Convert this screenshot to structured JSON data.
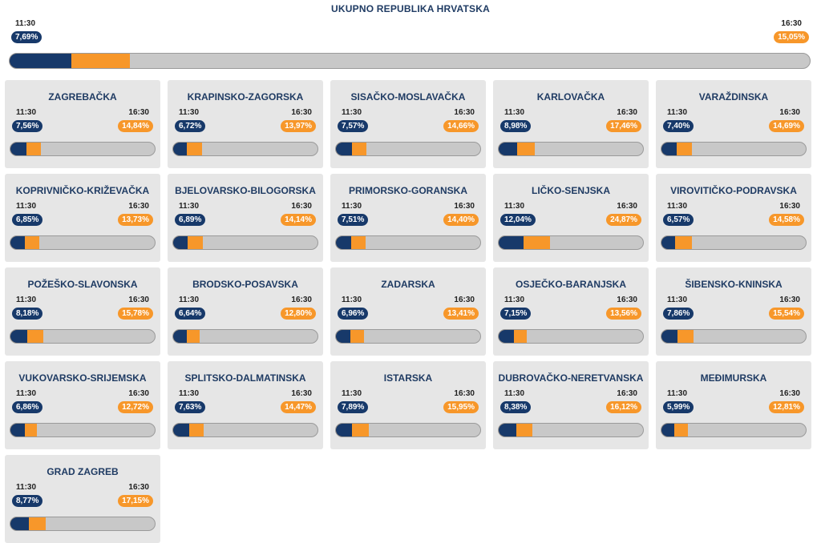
{
  "national": {
    "title": "UKUPNO REPUBLIKA HRVATSKA",
    "time1": "11:30",
    "value1": "7,69%",
    "frac1": 0.0769,
    "time2": "16:30",
    "value2": "15,05%",
    "frac2": 0.1505
  },
  "colors": {
    "first": "#17396a",
    "second": "#f7972a",
    "track": "#c8c8c8"
  },
  "counties": [
    {
      "name": "ZAGREBAČKA",
      "time1": "11:30",
      "value1": "7,56%",
      "frac1": 0.0756,
      "time2": "16:30",
      "value2": "14,84%",
      "frac2": 0.1484
    },
    {
      "name": "KRAPINSKO-ZAGORSKA",
      "time1": "11:30",
      "value1": "6,72%",
      "frac1": 0.0672,
      "time2": "16:30",
      "value2": "13,97%",
      "frac2": 0.1397
    },
    {
      "name": "SISAČKO-MOSLAVAČKA",
      "time1": "11:30",
      "value1": "7,57%",
      "frac1": 0.0757,
      "time2": "16:30",
      "value2": "14,66%",
      "frac2": 0.1466
    },
    {
      "name": "KARLOVAČKA",
      "time1": "11:30",
      "value1": "8,98%",
      "frac1": 0.0898,
      "time2": "16:30",
      "value2": "17,46%",
      "frac2": 0.1746
    },
    {
      "name": "VARAŽDINSKA",
      "time1": "11:30",
      "value1": "7,40%",
      "frac1": 0.074,
      "time2": "16:30",
      "value2": "14,69%",
      "frac2": 0.1469
    },
    {
      "name": "KOPRIVNIČKO-KRIŽEVAČKA",
      "time1": "11:30",
      "value1": "6,85%",
      "frac1": 0.0685,
      "time2": "16:30",
      "value2": "13,73%",
      "frac2": 0.1373
    },
    {
      "name": "BJELOVARSKO-BILOGORSKA",
      "time1": "11:30",
      "value1": "6,89%",
      "frac1": 0.0689,
      "time2": "16:30",
      "value2": "14,14%",
      "frac2": 0.1414
    },
    {
      "name": "PRIMORSKO-GORANSKA",
      "time1": "11:30",
      "value1": "7,51%",
      "frac1": 0.0751,
      "time2": "16:30",
      "value2": "14,40%",
      "frac2": 0.144
    },
    {
      "name": "LIČKO-SENJSKA",
      "time1": "11:30",
      "value1": "12,04%",
      "frac1": 0.1204,
      "time2": "16:30",
      "value2": "24,87%",
      "frac2": 0.2487
    },
    {
      "name": "VIROVITIČKO-PODRAVSKA",
      "time1": "11:30",
      "value1": "6,57%",
      "frac1": 0.0657,
      "time2": "16:30",
      "value2": "14,58%",
      "frac2": 0.1458
    },
    {
      "name": "POŽEŠKO-SLAVONSKA",
      "time1": "11:30",
      "value1": "8,18%",
      "frac1": 0.0818,
      "time2": "16:30",
      "value2": "15,78%",
      "frac2": 0.1578
    },
    {
      "name": "BRODSKO-POSAVSKA",
      "time1": "11:30",
      "value1": "6,64%",
      "frac1": 0.0664,
      "time2": "16:30",
      "value2": "12,80%",
      "frac2": 0.128
    },
    {
      "name": "ZADARSKA",
      "time1": "11:30",
      "value1": "6,96%",
      "frac1": 0.0696,
      "time2": "16:30",
      "value2": "13,41%",
      "frac2": 0.1341
    },
    {
      "name": "OSJEČKO-BARANJSKA",
      "time1": "11:30",
      "value1": "7,15%",
      "frac1": 0.0715,
      "time2": "16:30",
      "value2": "13,56%",
      "frac2": 0.1356
    },
    {
      "name": "ŠIBENSKO-KNINSKA",
      "time1": "11:30",
      "value1": "7,86%",
      "frac1": 0.0786,
      "time2": "16:30",
      "value2": "15,54%",
      "frac2": 0.1554
    },
    {
      "name": "VUKOVARSKO-SRIJEMSKA",
      "time1": "11:30",
      "value1": "6,86%",
      "frac1": 0.0686,
      "time2": "16:30",
      "value2": "12,72%",
      "frac2": 0.1272
    },
    {
      "name": "SPLITSKO-DALMATINSKA",
      "time1": "11:30",
      "value1": "7,63%",
      "frac1": 0.0763,
      "time2": "16:30",
      "value2": "14,47%",
      "frac2": 0.1447
    },
    {
      "name": "ISTARSKA",
      "time1": "11:30",
      "value1": "7,89%",
      "frac1": 0.0789,
      "time2": "16:30",
      "value2": "15,95%",
      "frac2": 0.1595
    },
    {
      "name": "DUBROVAČKO-NERETVANSKA",
      "time1": "11:30",
      "value1": "8,38%",
      "frac1": 0.0838,
      "time2": "16:30",
      "value2": "16,12%",
      "frac2": 0.1612
    },
    {
      "name": "MEĐIMURSKA",
      "time1": "11:30",
      "value1": "5,99%",
      "frac1": 0.0599,
      "time2": "16:30",
      "value2": "12,81%",
      "frac2": 0.1281
    },
    {
      "name": "GRAD ZAGREB",
      "time1": "11:30",
      "value1": "8,77%",
      "frac1": 0.0877,
      "time2": "16:30",
      "value2": "17,15%",
      "frac2": 0.1715
    }
  ]
}
